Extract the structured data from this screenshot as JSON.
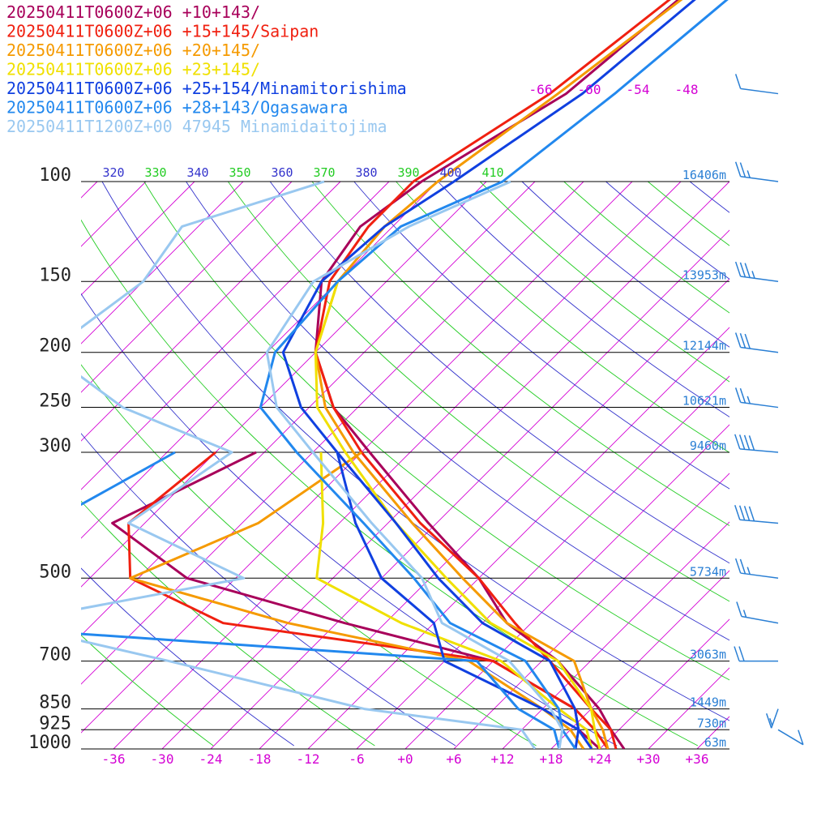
{
  "chart_data": {
    "type": "line",
    "title": "",
    "legend_position": "top-left",
    "legend": [
      {
        "label": "20250411T0600Z+06 +10+143/",
        "color": "#a8005a"
      },
      {
        "label": "20250411T0600Z+06 +15+145/Saipan",
        "color": "#f02010"
      },
      {
        "label": "20250411T0600Z+06 +20+145/",
        "color": "#f59a00"
      },
      {
        "label": "20250411T0600Z+06 +23+145/",
        "color": "#f0e000"
      },
      {
        "label": "20250411T0600Z+06 +25+154/Minamitorishima",
        "color": "#1040e0"
      },
      {
        "label": "20250411T0600Z+06 +28+143/Ogasawara",
        "color": "#2288ee"
      },
      {
        "label": "20250411T1200Z+00 47945 Minamidaitojima",
        "color": "#99c8f0"
      }
    ],
    "pressure_levels": [
      "100",
      "150",
      "200",
      "250",
      "300",
      "500",
      "700",
      "850",
      "925",
      "1000"
    ],
    "heights": [
      {
        "p": 100,
        "label": "16406m"
      },
      {
        "p": 150,
        "label": "13953m"
      },
      {
        "p": 200,
        "label": "12144m"
      },
      {
        "p": 250,
        "label": "10621m"
      },
      {
        "p": 300,
        "label": "9460m"
      },
      {
        "p": 500,
        "label": "5734m"
      },
      {
        "p": 700,
        "label": "3063m"
      },
      {
        "p": 850,
        "label": "1449m"
      },
      {
        "p": 925,
        "label": "730m"
      },
      {
        "p": 1000,
        "label": "63m"
      }
    ],
    "temperature_ticks": [
      "-36",
      "-30",
      "-24",
      "-18",
      "-12",
      "-6",
      "+0",
      "+6",
      "+12",
      "+18",
      "+24",
      "+30",
      "+36"
    ],
    "upper_temperature_labels": [
      "-66",
      "-60",
      "-54",
      "-48"
    ],
    "theta_labels": [
      "320",
      "330",
      "340",
      "350",
      "360",
      "370",
      "380",
      "390",
      "400",
      "410"
    ],
    "axes": {
      "t_min": -40,
      "t_max": 40,
      "p_top": 100,
      "p_bottom": 1000,
      "skew": "45deg",
      "log_pressure": true
    },
    "series": [
      {
        "name": "20250411T0600Z+06 +10+143/",
        "color": "#a8005a",
        "kind": "temperature",
        "points": [
          [
            30,
            -56
          ],
          [
            70,
            -61
          ],
          [
            100,
            -68
          ],
          [
            120,
            -70
          ],
          [
            150,
            -68
          ],
          [
            200,
            -60
          ],
          [
            250,
            -51
          ],
          [
            300,
            -41
          ],
          [
            400,
            -25
          ],
          [
            500,
            -12
          ],
          [
            600,
            -3
          ],
          [
            700,
            8
          ],
          [
            850,
            19
          ],
          [
            925,
            23
          ],
          [
            1000,
            27
          ]
        ]
      },
      {
        "name": "20250411T0600Z+06 +10+143/",
        "color": "#a8005a",
        "kind": "dewpoint",
        "points": [
          [
            300,
            -55
          ],
          [
            400,
            -64
          ],
          [
            500,
            -48
          ],
          [
            600,
            -23
          ],
          [
            700,
            0
          ],
          [
            850,
            16
          ],
          [
            925,
            19
          ],
          [
            1000,
            24
          ]
        ]
      },
      {
        "name": "20250411T0600Z+06 +15+145/Saipan",
        "color": "#f02010",
        "kind": "temperature",
        "points": [
          [
            30,
            -56
          ],
          [
            70,
            -63
          ],
          [
            100,
            -69
          ],
          [
            120,
            -69
          ],
          [
            150,
            -67
          ],
          [
            200,
            -60
          ],
          [
            250,
            -51
          ],
          [
            300,
            -42
          ],
          [
            400,
            -26
          ],
          [
            500,
            -12
          ],
          [
            600,
            -2
          ],
          [
            700,
            7
          ],
          [
            850,
            18
          ],
          [
            925,
            23
          ],
          [
            1000,
            26
          ]
        ]
      },
      {
        "name": "20250411T0600Z+06 +15+145/Saipan",
        "color": "#f02010",
        "kind": "dewpoint",
        "points": [
          [
            300,
            -60
          ],
          [
            400,
            -62
          ],
          [
            500,
            -55
          ],
          [
            600,
            -38
          ],
          [
            700,
            0
          ],
          [
            850,
            16
          ],
          [
            925,
            21
          ],
          [
            1000,
            25
          ]
        ]
      },
      {
        "name": "20250411T0600Z+06 +20+145/",
        "color": "#f59a00",
        "kind": "temperature",
        "points": [
          [
            30,
            -54
          ],
          [
            70,
            -62
          ],
          [
            100,
            -66
          ],
          [
            120,
            -67
          ],
          [
            150,
            -66
          ],
          [
            200,
            -60
          ],
          [
            250,
            -52
          ],
          [
            300,
            -43
          ],
          [
            400,
            -27
          ],
          [
            500,
            -14
          ],
          [
            600,
            -3
          ],
          [
            700,
            10
          ],
          [
            850,
            18
          ],
          [
            925,
            22
          ],
          [
            1000,
            25
          ]
        ]
      },
      {
        "name": "20250411T0600Z+06 +20+145/",
        "color": "#f59a00",
        "kind": "dewpoint",
        "points": [
          [
            300,
            -42
          ],
          [
            400,
            -46
          ],
          [
            500,
            -55
          ],
          [
            600,
            -30
          ],
          [
            700,
            -3
          ],
          [
            850,
            12
          ],
          [
            925,
            18
          ],
          [
            1000,
            22
          ]
        ]
      },
      {
        "name": "20250411T0600Z+06 +23+145/",
        "color": "#f0e000",
        "kind": "temperature",
        "points": [
          [
            150,
            -66
          ],
          [
            200,
            -60
          ],
          [
            250,
            -53
          ],
          [
            300,
            -44
          ],
          [
            400,
            -29
          ],
          [
            500,
            -16
          ],
          [
            600,
            -5
          ],
          [
            700,
            8
          ],
          [
            850,
            18
          ],
          [
            925,
            21
          ],
          [
            1000,
            24
          ]
        ]
      },
      {
        "name": "20250411T0600Z+06 +23+145/",
        "color": "#f0e000",
        "kind": "dewpoint",
        "points": [
          [
            300,
            -47
          ],
          [
            400,
            -38
          ],
          [
            500,
            -32
          ],
          [
            600,
            -16
          ],
          [
            700,
            1
          ],
          [
            850,
            14
          ],
          [
            925,
            20
          ],
          [
            1000,
            23
          ]
        ]
      },
      {
        "name": "20250411T0600Z+06 +25+154/Minamitorishima",
        "color": "#1040e0",
        "kind": "temperature",
        "points": [
          [
            30,
            -54
          ],
          [
            70,
            -59
          ],
          [
            100,
            -64
          ],
          [
            120,
            -67
          ],
          [
            150,
            -68
          ],
          [
            200,
            -64
          ],
          [
            250,
            -55
          ],
          [
            300,
            -45
          ],
          [
            400,
            -29
          ],
          [
            500,
            -17
          ],
          [
            600,
            -6
          ],
          [
            700,
            7
          ],
          [
            850,
            16
          ],
          [
            925,
            19
          ],
          [
            1000,
            23
          ]
        ]
      },
      {
        "name": "20250411T0600Z+06 +25+154/Minamitorishima",
        "color": "#1040e0",
        "kind": "dewpoint",
        "points": [
          [
            300,
            -45
          ],
          [
            400,
            -34
          ],
          [
            500,
            -24
          ],
          [
            600,
            -12
          ],
          [
            700,
            -6
          ],
          [
            850,
            12
          ],
          [
            925,
            19
          ],
          [
            1000,
            21
          ]
        ]
      },
      {
        "name": "20250411T0600Z+06 +28+143/Ogasawara",
        "color": "#2288ee",
        "kind": "temperature",
        "points": [
          [
            30,
            -50
          ],
          [
            70,
            -55
          ],
          [
            100,
            -58
          ],
          [
            120,
            -65
          ],
          [
            150,
            -66
          ],
          [
            200,
            -65
          ],
          [
            250,
            -60
          ],
          [
            300,
            -50
          ],
          [
            400,
            -33
          ],
          [
            500,
            -20
          ],
          [
            600,
            -10
          ],
          [
            700,
            4
          ],
          [
            850,
            14
          ],
          [
            925,
            17
          ],
          [
            1000,
            21
          ]
        ]
      },
      {
        "name": "20250411T0600Z+06 +28+143/Ogasawara",
        "color": "#2288ee",
        "kind": "dewpoint",
        "points": [
          [
            300,
            -65
          ],
          [
            400,
            -72
          ],
          [
            500,
            -73
          ],
          [
            600,
            -75
          ],
          [
            700,
            -2
          ],
          [
            850,
            9
          ],
          [
            925,
            16
          ],
          [
            1000,
            19
          ]
        ]
      },
      {
        "name": "20250411T1200Z+00 47945 Minamidaitojima",
        "color": "#99c8f0",
        "kind": "temperature",
        "points": [
          [
            100,
            -57
          ],
          [
            120,
            -64
          ],
          [
            150,
            -69
          ],
          [
            200,
            -66
          ],
          [
            250,
            -58
          ],
          [
            300,
            -48
          ],
          [
            400,
            -32
          ],
          [
            500,
            -19
          ],
          [
            600,
            -11
          ],
          [
            700,
            2
          ],
          [
            850,
            13
          ],
          [
            925,
            17
          ],
          [
            1000,
            19
          ]
        ]
      },
      {
        "name": "20250411T1200Z+00 47945 Minamidaitojima",
        "color": "#99c8f0",
        "kind": "dewpoint",
        "points": [
          [
            100,
            -80
          ],
          [
            120,
            -92
          ],
          [
            150,
            -90
          ],
          [
            200,
            -93
          ],
          [
            250,
            -77
          ],
          [
            300,
            -58
          ],
          [
            400,
            -62
          ],
          [
            500,
            -41
          ],
          [
            600,
            -65
          ],
          [
            700,
            -40
          ],
          [
            850,
            -10
          ],
          [
            925,
            12
          ],
          [
            1000,
            16
          ]
        ]
      }
    ],
    "wind_barbs": [
      {
        "p": 70,
        "dir": 255,
        "spd": 10
      },
      {
        "p": 100,
        "dir": 255,
        "spd": 25
      },
      {
        "p": 150,
        "dir": 255,
        "spd": 35
      },
      {
        "p": 200,
        "dir": 255,
        "spd": 30
      },
      {
        "p": 250,
        "dir": 255,
        "spd": 25
      },
      {
        "p": 300,
        "dir": 260,
        "spd": 40
      },
      {
        "p": 400,
        "dir": 260,
        "spd": 40
      },
      {
        "p": 500,
        "dir": 255,
        "spd": 25
      },
      {
        "p": 600,
        "dir": 250,
        "spd": 15
      },
      {
        "p": 700,
        "dir": 270,
        "spd": 20
      },
      {
        "p": 850,
        "dir": 350,
        "spd": 15
      },
      {
        "p": 925,
        "dir": 40,
        "spd": 10
      }
    ]
  }
}
